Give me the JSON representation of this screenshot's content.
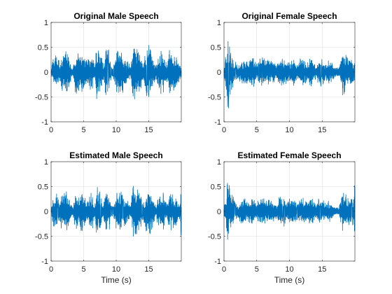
{
  "chart_data": [
    {
      "type": "line",
      "title": "Original Male Speech",
      "xlabel": "",
      "ylabel": "",
      "xlim": [
        0,
        20
      ],
      "ylim": [
        -1,
        1
      ],
      "xticks": [
        0,
        5,
        10,
        15
      ],
      "yticks": [
        1,
        0.5,
        0,
        -0.5,
        -1
      ],
      "xtick_labels": [
        "0",
        "5",
        "10",
        "15"
      ],
      "ytick_labels": [
        "1",
        "0.5",
        "0",
        "-0.5",
        "-1"
      ],
      "grid": true,
      "series_color": "#0072BD",
      "envelope": [
        [
          0,
          0.05
        ],
        [
          0.3,
          0.3
        ],
        [
          0.8,
          0.4
        ],
        [
          1.3,
          0.25
        ],
        [
          1.8,
          0.4
        ],
        [
          2.4,
          0.5
        ],
        [
          2.9,
          0.25
        ],
        [
          3.3,
          0.05
        ],
        [
          3.8,
          0.45
        ],
        [
          4.3,
          0.35
        ],
        [
          4.8,
          0.45
        ],
        [
          5.3,
          0.3
        ],
        [
          5.8,
          0.35
        ],
        [
          6.3,
          0.45
        ],
        [
          6.7,
          0.1
        ],
        [
          7.0,
          0.55
        ],
        [
          7.5,
          0.5
        ],
        [
          8.0,
          0.15
        ],
        [
          8.4,
          0.55
        ],
        [
          8.9,
          0.45
        ],
        [
          9.3,
          0.08
        ],
        [
          9.7,
          0.15
        ],
        [
          10.3,
          0.65
        ],
        [
          10.8,
          0.45
        ],
        [
          11.3,
          0.3
        ],
        [
          11.8,
          0.2
        ],
        [
          12.2,
          0.1
        ],
        [
          12.7,
          0.7
        ],
        [
          13.2,
          0.6
        ],
        [
          13.7,
          0.4
        ],
        [
          14.2,
          0.15
        ],
        [
          14.6,
          0.55
        ],
        [
          15.1,
          0.6
        ],
        [
          15.6,
          0.35
        ],
        [
          16.1,
          0.1
        ],
        [
          16.6,
          0.4
        ],
        [
          17.2,
          0.45
        ],
        [
          17.7,
          0.15
        ],
        [
          18.1,
          0.5
        ],
        [
          18.6,
          0.4
        ],
        [
          19.2,
          0.35
        ],
        [
          19.7,
          0.15
        ],
        [
          20,
          0.05
        ]
      ],
      "noise_floor": 0.03,
      "seed": 11
    },
    {
      "type": "line",
      "title": "Original Female Speech",
      "xlabel": "",
      "ylabel": "",
      "xlim": [
        0,
        20
      ],
      "ylim": [
        -1,
        1
      ],
      "xticks": [
        0,
        5,
        10,
        15
      ],
      "yticks": [
        1,
        0.5,
        0,
        -0.5,
        -1
      ],
      "xtick_labels": [
        "0",
        "5",
        "10",
        "15"
      ],
      "ytick_labels": [
        "1",
        "0.5",
        "0",
        "-0.5",
        "-1"
      ],
      "grid": true,
      "series_color": "#0072BD",
      "envelope": [
        [
          0,
          0.1
        ],
        [
          0.2,
          0.35
        ],
        [
          0.5,
          0.8
        ],
        [
          0.7,
          0.95
        ],
        [
          0.9,
          0.5
        ],
        [
          1.3,
          0.3
        ],
        [
          1.7,
          0.2
        ],
        [
          2.2,
          0.12
        ],
        [
          2.6,
          0.25
        ],
        [
          3.1,
          0.3
        ],
        [
          3.6,
          0.2
        ],
        [
          4.0,
          0.3
        ],
        [
          4.5,
          0.35
        ],
        [
          5.0,
          0.15
        ],
        [
          5.4,
          0.3
        ],
        [
          6.0,
          0.3
        ],
        [
          6.5,
          0.2
        ],
        [
          7.0,
          0.28
        ],
        [
          7.5,
          0.25
        ],
        [
          8.0,
          0.12
        ],
        [
          8.5,
          0.3
        ],
        [
          9.1,
          0.3
        ],
        [
          9.6,
          0.2
        ],
        [
          10.1,
          0.25
        ],
        [
          10.6,
          0.3
        ],
        [
          11.1,
          0.15
        ],
        [
          11.6,
          0.25
        ],
        [
          12.1,
          0.3
        ],
        [
          12.6,
          0.2
        ],
        [
          13.1,
          0.3
        ],
        [
          13.6,
          0.25
        ],
        [
          14.1,
          0.12
        ],
        [
          14.6,
          0.28
        ],
        [
          15.1,
          0.25
        ],
        [
          15.6,
          0.15
        ],
        [
          16.0,
          0.25
        ],
        [
          16.5,
          0.18
        ],
        [
          17.0,
          0.1
        ],
        [
          17.5,
          0.06
        ],
        [
          17.9,
          0.3
        ],
        [
          18.2,
          0.6
        ],
        [
          18.5,
          0.4
        ],
        [
          19.0,
          0.35
        ],
        [
          19.5,
          0.4
        ],
        [
          20,
          0.25
        ]
      ],
      "noise_floor": 0.03,
      "seed": 23
    },
    {
      "type": "line",
      "title": "Estimated Male Speech",
      "xlabel": "Time (s)",
      "ylabel": "",
      "xlim": [
        0,
        20
      ],
      "ylim": [
        -1,
        1
      ],
      "xticks": [
        0,
        5,
        10,
        15
      ],
      "yticks": [
        1,
        0.5,
        0,
        -0.5,
        -1
      ],
      "xtick_labels": [
        "0",
        "5",
        "10",
        "15"
      ],
      "ytick_labels": [
        "1",
        "0.5",
        "0",
        "-0.5",
        "-1"
      ],
      "grid": true,
      "series_color": "#0072BD",
      "envelope": [
        [
          0,
          0.05
        ],
        [
          0.3,
          0.3
        ],
        [
          0.8,
          0.35
        ],
        [
          1.3,
          0.25
        ],
        [
          1.8,
          0.4
        ],
        [
          2.4,
          0.45
        ],
        [
          2.9,
          0.2
        ],
        [
          3.3,
          0.05
        ],
        [
          3.8,
          0.45
        ],
        [
          4.3,
          0.3
        ],
        [
          4.8,
          0.45
        ],
        [
          5.3,
          0.25
        ],
        [
          5.8,
          0.3
        ],
        [
          6.3,
          0.4
        ],
        [
          6.7,
          0.1
        ],
        [
          7.0,
          0.5
        ],
        [
          7.5,
          0.45
        ],
        [
          8.0,
          0.15
        ],
        [
          8.4,
          0.5
        ],
        [
          8.9,
          0.4
        ],
        [
          9.3,
          0.08
        ],
        [
          9.7,
          0.15
        ],
        [
          10.3,
          0.55
        ],
        [
          10.8,
          0.45
        ],
        [
          11.3,
          0.3
        ],
        [
          11.8,
          0.2
        ],
        [
          12.2,
          0.1
        ],
        [
          12.7,
          0.65
        ],
        [
          13.2,
          0.55
        ],
        [
          13.7,
          0.4
        ],
        [
          14.2,
          0.15
        ],
        [
          14.6,
          0.5
        ],
        [
          15.1,
          0.55
        ],
        [
          15.6,
          0.3
        ],
        [
          16.1,
          0.1
        ],
        [
          16.6,
          0.35
        ],
        [
          17.2,
          0.4
        ],
        [
          17.7,
          0.15
        ],
        [
          18.1,
          0.45
        ],
        [
          18.6,
          0.35
        ],
        [
          19.2,
          0.3
        ],
        [
          19.6,
          0.15
        ],
        [
          19.85,
          0.2
        ],
        [
          19.95,
          0.95
        ],
        [
          20,
          0.3
        ]
      ],
      "noise_floor": 0.03,
      "seed": 37
    },
    {
      "type": "line",
      "title": "Estimated Female Speech",
      "xlabel": "Time (s)",
      "ylabel": "",
      "xlim": [
        0,
        20
      ],
      "ylim": [
        -1,
        1
      ],
      "xticks": [
        0,
        5,
        10,
        15
      ],
      "yticks": [
        1,
        0.5,
        0,
        -0.5,
        -1
      ],
      "xtick_labels": [
        "0",
        "5",
        "10",
        "15"
      ],
      "ytick_labels": [
        "1",
        "0.5",
        "0",
        "-0.5",
        "-1"
      ],
      "grid": true,
      "series_color": "#0072BD",
      "envelope": [
        [
          0,
          0.1
        ],
        [
          0.2,
          0.3
        ],
        [
          0.5,
          0.65
        ],
        [
          0.7,
          0.85
        ],
        [
          0.9,
          0.45
        ],
        [
          1.3,
          0.3
        ],
        [
          1.7,
          0.2
        ],
        [
          2.2,
          0.12
        ],
        [
          2.6,
          0.25
        ],
        [
          3.1,
          0.3
        ],
        [
          3.6,
          0.2
        ],
        [
          4.0,
          0.3
        ],
        [
          4.5,
          0.3
        ],
        [
          5.0,
          0.15
        ],
        [
          5.4,
          0.3
        ],
        [
          6.0,
          0.3
        ],
        [
          6.5,
          0.2
        ],
        [
          7.0,
          0.28
        ],
        [
          7.5,
          0.25
        ],
        [
          8.0,
          0.12
        ],
        [
          8.5,
          0.28
        ],
        [
          9.1,
          0.3
        ],
        [
          9.6,
          0.2
        ],
        [
          10.1,
          0.25
        ],
        [
          10.6,
          0.3
        ],
        [
          11.1,
          0.15
        ],
        [
          11.6,
          0.25
        ],
        [
          12.1,
          0.28
        ],
        [
          12.6,
          0.2
        ],
        [
          13.1,
          0.28
        ],
        [
          13.6,
          0.25
        ],
        [
          14.1,
          0.12
        ],
        [
          14.6,
          0.28
        ],
        [
          15.1,
          0.25
        ],
        [
          15.6,
          0.15
        ],
        [
          16.0,
          0.22
        ],
        [
          16.5,
          0.15
        ],
        [
          17.0,
          0.08
        ],
        [
          17.5,
          0.05
        ],
        [
          17.9,
          0.3
        ],
        [
          18.2,
          0.55
        ],
        [
          18.5,
          0.35
        ],
        [
          19.0,
          0.3
        ],
        [
          19.5,
          0.35
        ],
        [
          19.9,
          0.4
        ],
        [
          20,
          0.9
        ]
      ],
      "noise_floor": 0.03,
      "seed": 53
    }
  ]
}
